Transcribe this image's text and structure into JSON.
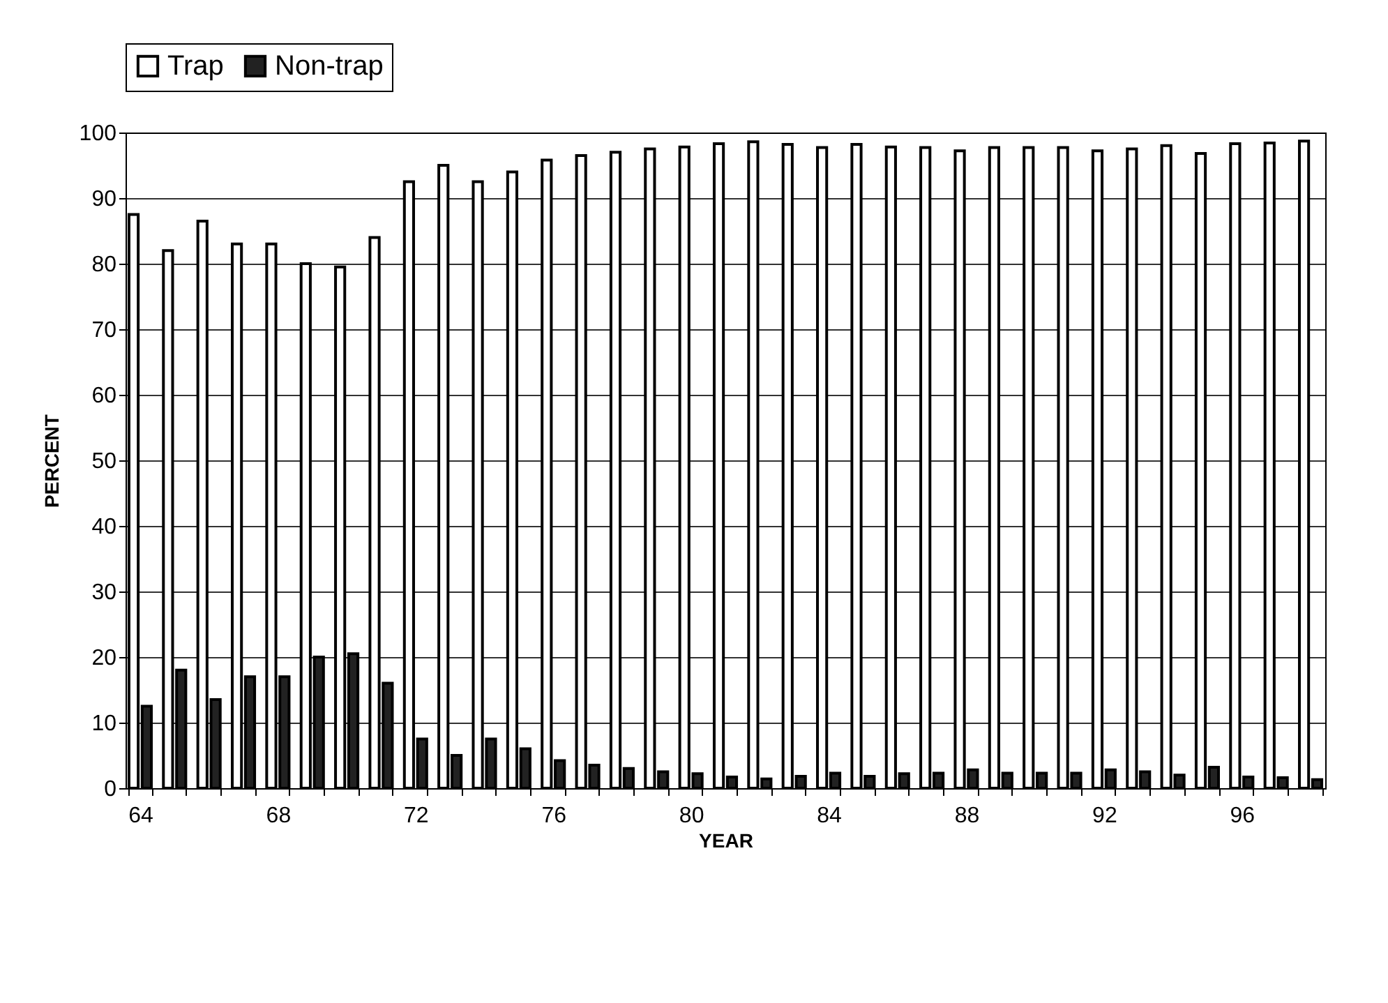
{
  "chart_data": {
    "type": "bar",
    "xlabel": "YEAR",
    "ylabel": "PERCENT",
    "categories": [
      "64",
      null,
      null,
      null,
      "68",
      null,
      null,
      null,
      "72",
      null,
      null,
      null,
      "76",
      null,
      null,
      null,
      "80",
      null,
      null,
      null,
      "84",
      null,
      null,
      null,
      "88",
      null,
      null,
      null,
      "92",
      null,
      null,
      null,
      "96",
      null,
      null
    ],
    "series": [
      {
        "name": "Trap",
        "color": "#ffffff",
        "values": [
          87.5,
          82,
          86.5,
          83,
          83,
          80,
          79.5,
          84,
          92.5,
          95,
          92.5,
          94,
          95.8,
          96.5,
          97,
          97.5,
          97.8,
          98.3,
          98.6,
          98.2,
          97.7,
          98.2,
          97.8,
          97.7,
          97.2,
          97.7,
          97.7,
          97.7,
          97.2,
          97.5,
          98,
          96.8,
          98.3,
          98.4,
          98.7
        ]
      },
      {
        "name": "Non-trap",
        "color": "#222222",
        "values": [
          12.5,
          18,
          13.5,
          17,
          17,
          20,
          20.5,
          16,
          7.5,
          5,
          7.5,
          6,
          4.2,
          3.5,
          3,
          2.5,
          2.2,
          1.7,
          1.4,
          1.8,
          2.3,
          1.8,
          2.2,
          2.3,
          2.8,
          2.3,
          2.3,
          2.3,
          2.8,
          2.5,
          2,
          3.2,
          1.7,
          1.6,
          1.3
        ]
      }
    ],
    "ylim": [
      0,
      100
    ],
    "yticks": [
      0,
      10,
      20,
      30,
      40,
      50,
      60,
      70,
      80,
      90,
      100
    ],
    "grid": "y",
    "legend": "top"
  }
}
